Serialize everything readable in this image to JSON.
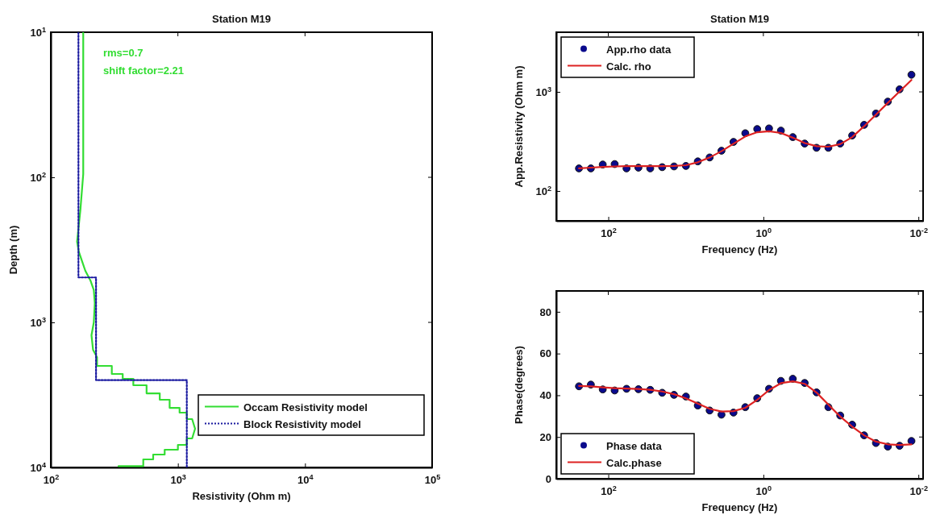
{
  "chart_data": [
    {
      "type": "line",
      "title": "Station M19",
      "xlabel": "Resistivity (Ohm m)",
      "ylabel": "Depth (m)",
      "log": "xy",
      "xlim": [
        100,
        100000
      ],
      "ylim": [
        10000,
        10
      ],
      "xticks": [
        {
          "value": 100,
          "label": "10$^{2}$"
        },
        {
          "value": 1000,
          "label": "10$^{3}$"
        },
        {
          "value": 10000,
          "label": "10$^{4}$"
        },
        {
          "value": 100000,
          "label": "10$^{5}$"
        }
      ],
      "yticks": [
        {
          "value": 10,
          "label": "10$^{1}$"
        },
        {
          "value": 100,
          "label": "10$^{2}$"
        },
        {
          "value": 1000,
          "label": "10$^{3}$"
        },
        {
          "value": 10000,
          "label": "10$^{4}$"
        }
      ],
      "legend": "bottom right",
      "annotations": [
        "rms=0.7",
        "shift factor=2.21"
      ],
      "series": [
        {
          "name": "Occam Resistivity model",
          "color": "#33dd33",
          "line_style": "solid",
          "x": [
            180,
            180,
            171,
            161,
            166,
            176,
            187,
            205,
            218,
            222,
            218,
            209,
            215,
            231,
            231,
            302,
            302,
            368,
            368,
            446,
            446,
            567,
            567,
            720,
            720,
            861,
            861,
            1031,
            1031,
            1175,
            1175,
            1294,
            1365,
            1294,
            1175,
            1175,
            1000,
            1000,
            787,
            787,
            639,
            639,
            534,
            534,
            341
          ],
          "values": [
            10,
            95,
            167,
            278,
            325,
            378,
            441,
            514,
            599,
            735,
            1000,
            1227,
            1545,
            1738,
            1995,
            1995,
            2268,
            2268,
            2448,
            2448,
            2712,
            2712,
            3084,
            3084,
            3415,
            3415,
            3882,
            3882,
            4189,
            4189,
            4642,
            4642,
            5412,
            6310,
            6310,
            6988,
            6988,
            7546,
            7546,
            8150,
            8150,
            8799,
            8799,
            9800,
            9800
          ]
        },
        {
          "name": "Block Resistivity model",
          "color": "#1a1aa0",
          "line_style": "dotted",
          "x": [
            165,
            165,
            227,
            227,
            1175,
            1175
          ],
          "values": [
            10,
            490,
            490,
            2500,
            2500,
            10000
          ]
        }
      ]
    },
    {
      "type": "scatter",
      "title": "Station M19",
      "xlabel": "Frequency (Hz)",
      "ylabel": "App.Resistivity (Ohm m)",
      "log": "xy",
      "xlim": [
        469,
        0.0087
      ],
      "ylim": [
        50,
        4000
      ],
      "xticks": [
        {
          "value": 100,
          "label": "10$^{2}$"
        },
        {
          "value": 1,
          "label": "10$^{0}$"
        },
        {
          "value": 0.01,
          "label": "10$^{-2}$"
        }
      ],
      "yticks": [
        {
          "value": 100,
          "label": "10$^{2}$"
        },
        {
          "value": 1000,
          "label": "10$^{3}$"
        }
      ],
      "legend": "top left",
      "x": [
        239,
        168,
        118,
        82.8,
        58.2,
        40.9,
        28.8,
        20.2,
        14.2,
        9.98,
        7.01,
        4.93,
        3.47,
        2.43,
        1.71,
        1.2,
        0.845,
        0.594,
        0.417,
        0.293,
        0.206,
        0.145,
        0.102,
        0.0715,
        0.0502,
        0.0353,
        0.0248,
        0.0175,
        0.0123
      ],
      "series": [
        {
          "name": "App.rho data",
          "marker": "circle",
          "color": "#0a0a8c",
          "values": [
            169,
            169,
            185,
            187,
            169,
            172,
            169,
            174,
            177,
            179,
            199,
            218,
            255,
            313,
            383,
            422,
            428,
            407,
            350,
            301,
            273,
            273,
            301,
            363,
            465,
            605,
            798,
            1062,
            1489
          ]
        },
        {
          "name": "Calc. rho",
          "type": "line",
          "color": "#dd2222",
          "values": [
            169,
            172,
            175,
            177,
            178,
            178,
            178,
            178,
            179,
            182,
            195,
            218,
            252,
            300,
            355,
            392,
            400,
            385,
            345,
            305,
            283,
            280,
            297,
            350,
            450,
            590,
            775,
            1010,
            1320
          ]
        }
      ]
    },
    {
      "type": "scatter",
      "xlabel": "Frequency (Hz)",
      "ylabel": "Phase(degrees)",
      "log": "x",
      "xlim": [
        469,
        0.0087
      ],
      "ylim": [
        0,
        90
      ],
      "xticks": [
        {
          "value": 100,
          "label": "10$^{2}$"
        },
        {
          "value": 1,
          "label": "10$^{0}$"
        },
        {
          "value": 0.01,
          "label": "10$^{-2}$"
        }
      ],
      "yticks": [
        0,
        20,
        40,
        60,
        80
      ],
      "legend": "bottom left",
      "x": [
        239,
        168,
        118,
        82.8,
        58.2,
        40.9,
        28.8,
        20.2,
        14.2,
        9.98,
        7.01,
        4.93,
        3.47,
        2.43,
        1.71,
        1.2,
        0.845,
        0.594,
        0.417,
        0.293,
        0.206,
        0.145,
        0.102,
        0.0715,
        0.0502,
        0.0353,
        0.0248,
        0.0175,
        0.0123
      ],
      "series": [
        {
          "name": "Phase data",
          "marker": "circle",
          "color": "#0a0a8c",
          "values": [
            44.3,
            45.1,
            42.8,
            42.3,
            43.1,
            42.9,
            42.6,
            41.2,
            40.2,
            39.4,
            35.1,
            32.7,
            30.7,
            31.7,
            34.3,
            38.6,
            43.1,
            46.9,
            47.9,
            45.9,
            41.4,
            34.3,
            30.3,
            25.9,
            20.8,
            17.1,
            15.4,
            15.8,
            18.1
          ]
        },
        {
          "name": "Calc.phase",
          "type": "line",
          "color": "#dd2222",
          "values": [
            44.5,
            44.3,
            43.8,
            43.4,
            43.2,
            43.0,
            42.6,
            41.8,
            40.5,
            38.5,
            36,
            33.5,
            32.2,
            32.4,
            34,
            37.8,
            42.5,
            45.8,
            46.7,
            45.5,
            41.3,
            35.5,
            29.8,
            25,
            20.8,
            17.8,
            16.5,
            16.2,
            16.5
          ]
        }
      ]
    }
  ]
}
